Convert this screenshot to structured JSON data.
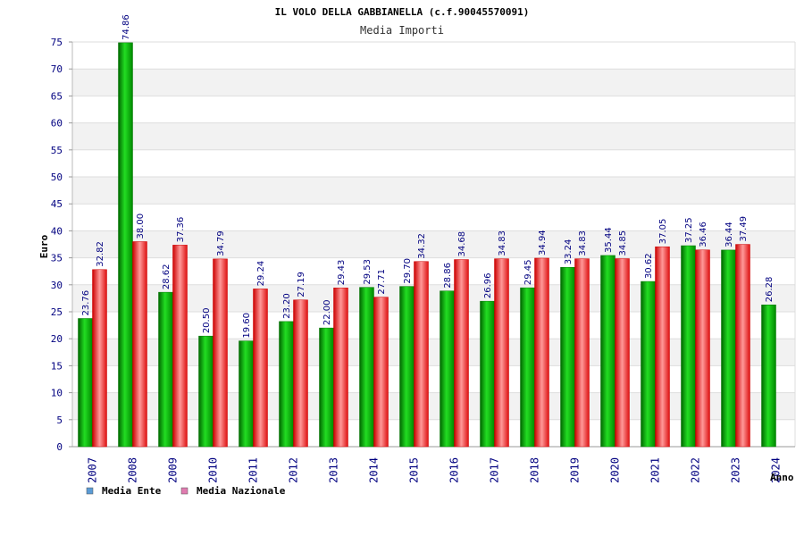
{
  "chart_data": {
    "type": "bar",
    "title": "IL VOLO DELLA GABBIANELLA (c.f.90045570091)",
    "subtitle": "Media Importi",
    "xlabel": "Anno",
    "ylabel": "Euro",
    "ylim": [
      0,
      75
    ],
    "ytick_step": 5,
    "grid": true,
    "legend_position": "bottom-left",
    "categories": [
      "2007",
      "2008",
      "2009",
      "2010",
      "2011",
      "2012",
      "2013",
      "2014",
      "2015",
      "2016",
      "2017",
      "2018",
      "2019",
      "2020",
      "2021",
      "2022",
      "2023",
      "2024"
    ],
    "series": [
      {
        "name": "Media Ente",
        "color": "#00aa00",
        "legend_color": "#5b9bd5",
        "values": [
          23.76,
          74.86,
          28.62,
          20.5,
          19.6,
          23.2,
          22.0,
          29.53,
          29.7,
          28.86,
          26.96,
          29.45,
          33.24,
          35.44,
          30.62,
          37.25,
          36.44,
          26.28
        ]
      },
      {
        "name": "Media Nazionale",
        "color": "#ee2222",
        "legend_color": "#e07bb0",
        "values": [
          32.82,
          38.0,
          37.36,
          34.79,
          29.24,
          27.19,
          29.43,
          27.71,
          34.32,
          34.68,
          34.83,
          34.94,
          34.83,
          34.85,
          37.05,
          36.46,
          37.49,
          null
        ]
      }
    ]
  }
}
